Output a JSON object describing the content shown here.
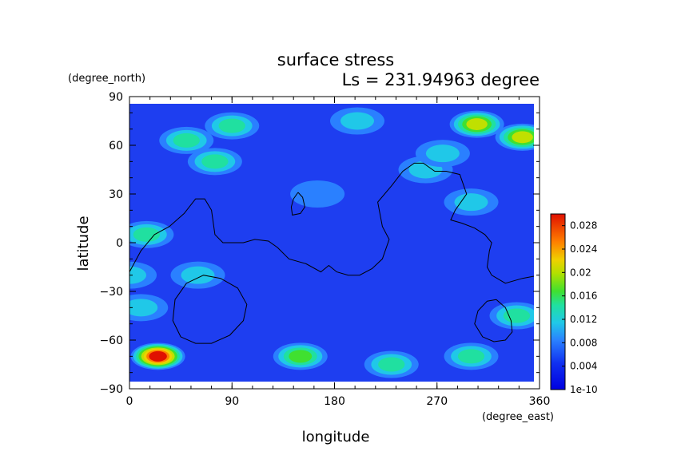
{
  "chart_data": {
    "type": "heatmap",
    "title": "surface stress",
    "subtitle": "Ls = 231.94963 degree",
    "xlabel": "longitude",
    "ylabel": "latitude",
    "x_units": "(degree_east)",
    "y_units": "(degree_north)",
    "xlim": [
      0,
      360
    ],
    "ylim": [
      -90,
      90
    ],
    "xticks": [
      "0",
      "90",
      "180",
      "270",
      "360"
    ],
    "yticks": [
      "-90",
      "-60",
      "-30",
      "0",
      "30",
      "60",
      "90"
    ],
    "colorbar": {
      "min": 0,
      "max": 0.03,
      "labels": [
        "1e-10",
        "0.004",
        "0.008",
        "0.012",
        "0.016",
        "0.02",
        "0.024",
        "0.028"
      ],
      "label_values": [
        0,
        0.004,
        0.008,
        0.012,
        0.016,
        0.02,
        0.024,
        0.028
      ]
    },
    "hotspots": [
      {
        "lon": 25,
        "lat": -70,
        "value": 0.028
      },
      {
        "lon": 150,
        "lat": -70,
        "value": 0.017
      },
      {
        "lon": 90,
        "lat": 72,
        "value": 0.014
      },
      {
        "lon": 305,
        "lat": 73,
        "value": 0.02
      },
      {
        "lon": 345,
        "lat": 65,
        "value": 0.018
      },
      {
        "lon": 50,
        "lat": 63,
        "value": 0.014
      },
      {
        "lon": 75,
        "lat": 50,
        "value": 0.013
      },
      {
        "lon": 15,
        "lat": 5,
        "value": 0.014
      },
      {
        "lon": 300,
        "lat": 25,
        "value": 0.011
      },
      {
        "lon": 340,
        "lat": -45,
        "value": 0.013
      },
      {
        "lon": 260,
        "lat": 45,
        "value": 0.011
      },
      {
        "lon": 275,
        "lat": 55,
        "value": 0.01
      },
      {
        "lon": 60,
        "lat": -20,
        "value": 0.01
      },
      {
        "lon": 10,
        "lat": -40,
        "value": 0.011
      },
      {
        "lon": 230,
        "lat": -75,
        "value": 0.012
      },
      {
        "lon": 300,
        "lat": -70,
        "value": 0.012
      },
      {
        "lon": 0,
        "lat": -20,
        "value": 0.01
      },
      {
        "lon": 200,
        "lat": 75,
        "value": 0.009
      },
      {
        "lon": 165,
        "lat": 30,
        "value": 0.008
      }
    ],
    "contours": [
      [
        [
          0,
          -18
        ],
        [
          10,
          -5
        ],
        [
          22,
          5
        ],
        [
          35,
          10
        ],
        [
          48,
          18
        ],
        [
          58,
          27
        ],
        [
          66,
          27
        ],
        [
          72,
          20
        ],
        [
          75,
          5
        ],
        [
          82,
          0
        ],
        [
          100,
          0
        ],
        [
          110,
          2
        ],
        [
          122,
          1
        ],
        [
          130,
          -3
        ],
        [
          140,
          -10
        ],
        [
          155,
          -13
        ],
        [
          168,
          -18
        ],
        [
          175,
          -14
        ],
        [
          182,
          -18
        ],
        [
          192,
          -20
        ],
        [
          202,
          -20
        ],
        [
          213,
          -16
        ],
        [
          222,
          -10
        ],
        [
          228,
          2
        ],
        [
          222,
          10
        ],
        [
          218,
          25
        ],
        [
          230,
          35
        ],
        [
          240,
          44
        ],
        [
          250,
          49
        ],
        [
          258,
          49
        ],
        [
          268,
          44
        ],
        [
          278,
          44
        ],
        [
          290,
          42
        ],
        [
          296,
          30
        ],
        [
          286,
          20
        ],
        [
          282,
          14
        ],
        [
          292,
          12
        ],
        [
          303,
          9
        ],
        [
          312,
          5
        ],
        [
          318,
          0
        ],
        [
          316,
          -5
        ],
        [
          314,
          -15
        ],
        [
          318,
          -20
        ],
        [
          330,
          -25
        ],
        [
          345,
          -22
        ],
        [
          360,
          -20
        ]
      ],
      [
        [
          148,
          31
        ],
        [
          144,
          27
        ],
        [
          142,
          22
        ],
        [
          143,
          17
        ],
        [
          150,
          18
        ],
        [
          154,
          22
        ],
        [
          152,
          28
        ],
        [
          148,
          31
        ]
      ],
      [
        [
          50,
          -25
        ],
        [
          65,
          -20
        ],
        [
          80,
          -22
        ],
        [
          95,
          -28
        ],
        [
          103,
          -38
        ],
        [
          100,
          -48
        ],
        [
          88,
          -57
        ],
        [
          72,
          -62
        ],
        [
          58,
          -62
        ],
        [
          45,
          -58
        ],
        [
          38,
          -48
        ],
        [
          40,
          -35
        ],
        [
          50,
          -25
        ]
      ],
      [
        [
          322,
          -35
        ],
        [
          330,
          -40
        ],
        [
          335,
          -48
        ],
        [
          336,
          -55
        ],
        [
          330,
          -60
        ],
        [
          320,
          -61
        ],
        [
          310,
          -58
        ],
        [
          303,
          -50
        ],
        [
          306,
          -42
        ],
        [
          314,
          -36
        ],
        [
          322,
          -35
        ]
      ]
    ]
  }
}
